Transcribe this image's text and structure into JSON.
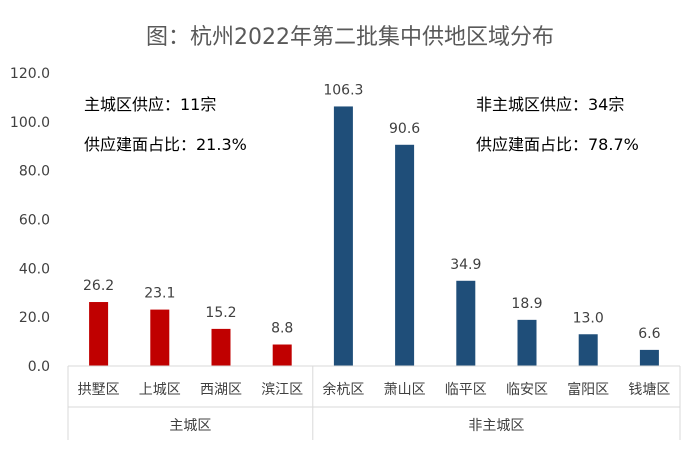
{
  "chart_data": {
    "type": "bar",
    "title": "图：杭州2022年第二批集中供地区域分布",
    "ylim": [
      0,
      120
    ],
    "yticks": [
      "0.0",
      "20.0",
      "40.0",
      "60.0",
      "80.0",
      "100.0",
      "120.0"
    ],
    "categories": [
      "拱墅区",
      "上城区",
      "西湖区",
      "滨江区",
      "余杭区",
      "萧山区",
      "临平区",
      "临安区",
      "富阳区",
      "钱塘区"
    ],
    "values": [
      26.2,
      23.1,
      15.2,
      8.8,
      106.3,
      90.6,
      34.9,
      18.9,
      13.0,
      6.6
    ],
    "value_labels": [
      "26.2",
      "23.1",
      "15.2",
      "8.8",
      "106.3",
      "90.6",
      "34.9",
      "18.9",
      "13.0",
      "6.6"
    ],
    "groups": [
      {
        "name": "主城区",
        "start": 0,
        "end": 3,
        "color": "#C00000"
      },
      {
        "name": "非主城区",
        "start": 4,
        "end": 9,
        "color": "#1F4E79"
      }
    ],
    "annotations": {
      "left_line1": "主城区供应：11宗",
      "left_line2": "供应建面占比：21.3%",
      "right_line1": "非主城区供应：34宗",
      "right_line2": "供应建面占比：78.7%"
    },
    "grid": false,
    "legend": "none"
  }
}
